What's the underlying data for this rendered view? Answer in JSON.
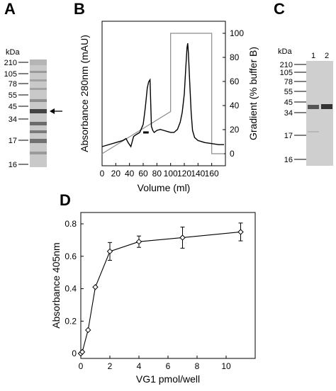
{
  "panels": {
    "A": {
      "letter": "A",
      "kda_label": "kDa",
      "markers": [
        "210",
        "105",
        "78",
        "55",
        "45",
        "34",
        "17",
        "16"
      ]
    },
    "B": {
      "letter": "B"
    },
    "C": {
      "letter": "C",
      "kda_label": "kDa",
      "lanes": [
        "1",
        "2"
      ],
      "markers": [
        "210",
        "105",
        "78",
        "55",
        "45",
        "34",
        "17",
        "16"
      ]
    },
    "D": {
      "letter": "D"
    }
  },
  "chart_data": [
    {
      "panel": "B",
      "type": "line",
      "xlabel": "Volume (ml)",
      "ylabel": "Absorbance 280nm (mAU)",
      "y2label": "Gradient (% buffer B)",
      "xlim": [
        0,
        180
      ],
      "x_ticks": [
        "0",
        "20",
        "40",
        "60",
        "80",
        "100",
        "120",
        "140",
        "160"
      ],
      "y2lim": [
        -10,
        110
      ],
      "y2_ticks": [
        "0",
        "20",
        "40",
        "60",
        "80",
        "100"
      ],
      "series": [
        {
          "x": [
            0,
            10,
            20,
            30,
            35,
            38,
            42,
            46,
            50,
            55,
            60,
            63,
            66,
            68,
            70,
            72,
            74,
            76,
            80,
            85,
            90,
            95,
            100,
            105,
            110,
            114,
            117,
            120,
            122,
            124,
            125,
            126,
            128,
            130,
            132,
            135,
            140,
            145,
            150,
            160,
            170,
            178
          ],
          "y": [
            0,
            2,
            4,
            6,
            8,
            4,
            0,
            10,
            12,
            14,
            22,
            38,
            58,
            64,
            66,
            20,
            16,
            14,
            16,
            17,
            16,
            15,
            14,
            14,
            17,
            24,
            34,
            52,
            76,
            98,
            102,
            92,
            62,
            34,
            16,
            9,
            6,
            5,
            4,
            3,
            2,
            2
          ]
        },
        {
          "axis": "gradient",
          "x": [
            0,
            100,
            100,
            160,
            160,
            178
          ],
          "y": [
            0,
            35,
            100,
            100,
            0,
            0
          ]
        }
      ],
      "bar_annotation": {
        "x": [
          60,
          68
        ],
        "y": 14
      }
    },
    {
      "panel": "D",
      "type": "scatter",
      "xlabel": "VG1 pmol/well",
      "ylabel": "Absorbance 405nm",
      "xlim": [
        0,
        12
      ],
      "ylim": [
        -0.03,
        0.87
      ],
      "x_ticks": [
        "0",
        "2",
        "4",
        "6",
        "8",
        "10"
      ],
      "y_ticks": [
        "0",
        "0.2",
        "0.4",
        "0.6",
        "0.8"
      ],
      "x": [
        0,
        0.1,
        0.5,
        1,
        2,
        4,
        7,
        11
      ],
      "y": [
        0,
        0.01,
        0.145,
        0.41,
        0.63,
        0.69,
        0.715,
        0.75
      ],
      "err": [
        0,
        0,
        0,
        0,
        0.055,
        0.035,
        0.065,
        0.055
      ]
    }
  ]
}
